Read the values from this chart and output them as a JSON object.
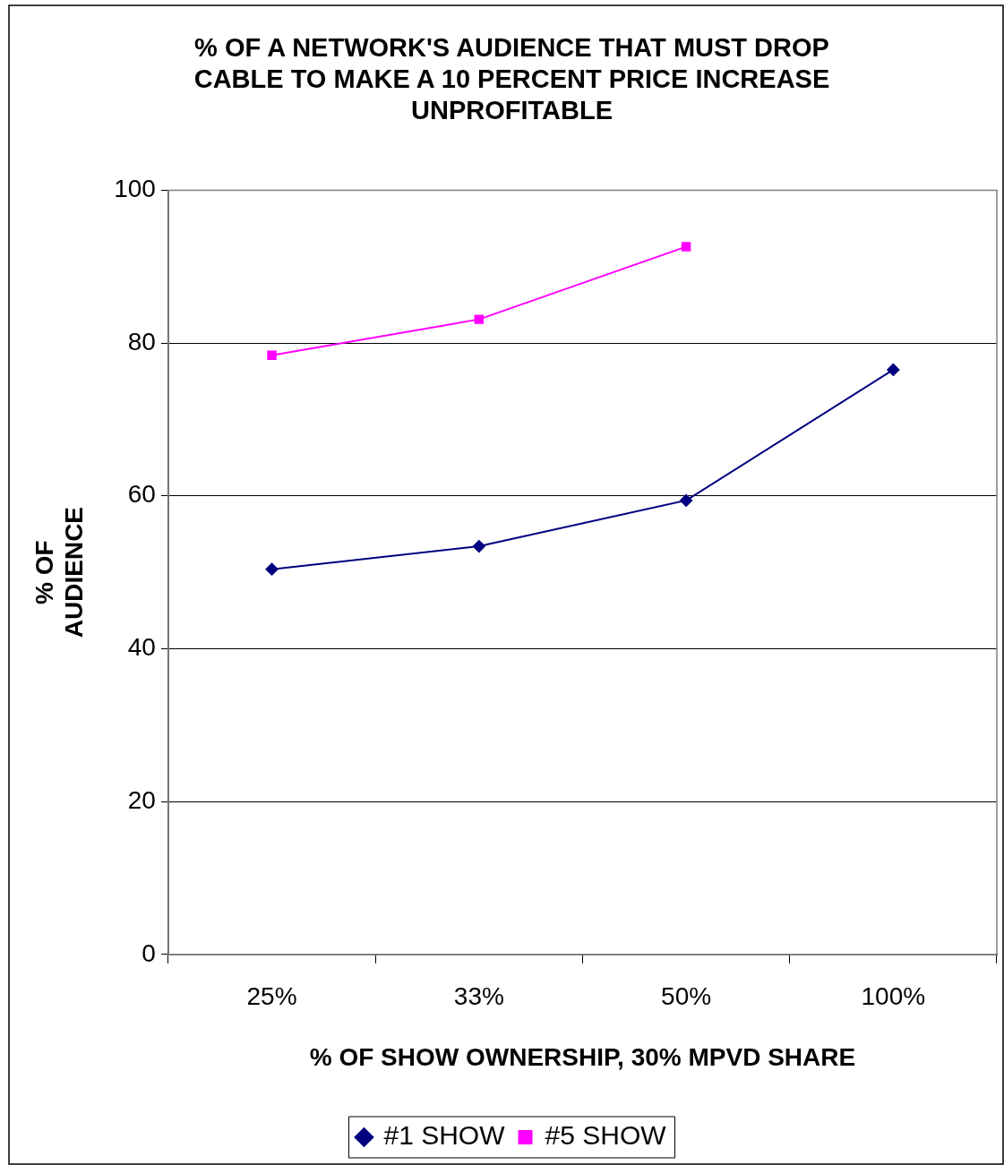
{
  "chart_data": {
    "type": "line",
    "title": "% OF A NETWORK'S AUDIENCE THAT MUST DROP CABLE TO MAKE A 10 PERCENT PRICE INCREASE UNPROFITABLE",
    "xlabel": "% OF SHOW OWNERSHIP, 30% MPVD SHARE",
    "ylabel": "% OF AUDIENCE",
    "categories": [
      "25%",
      "33%",
      "50%",
      "100%"
    ],
    "series": [
      {
        "name": "#1 SHOW",
        "color": "#000080",
        "marker": "diamond",
        "values": [
          50.4,
          53.4,
          59.4,
          76.5
        ]
      },
      {
        "name": "#5 SHOW",
        "color": "#ff00ff",
        "marker": "square",
        "values": [
          78.4,
          83.1,
          92.6,
          null
        ]
      }
    ],
    "ylim": [
      0,
      100
    ],
    "yticks": [
      0,
      20,
      40,
      60,
      80,
      100
    ],
    "grid": "y",
    "legend": "bottom"
  }
}
